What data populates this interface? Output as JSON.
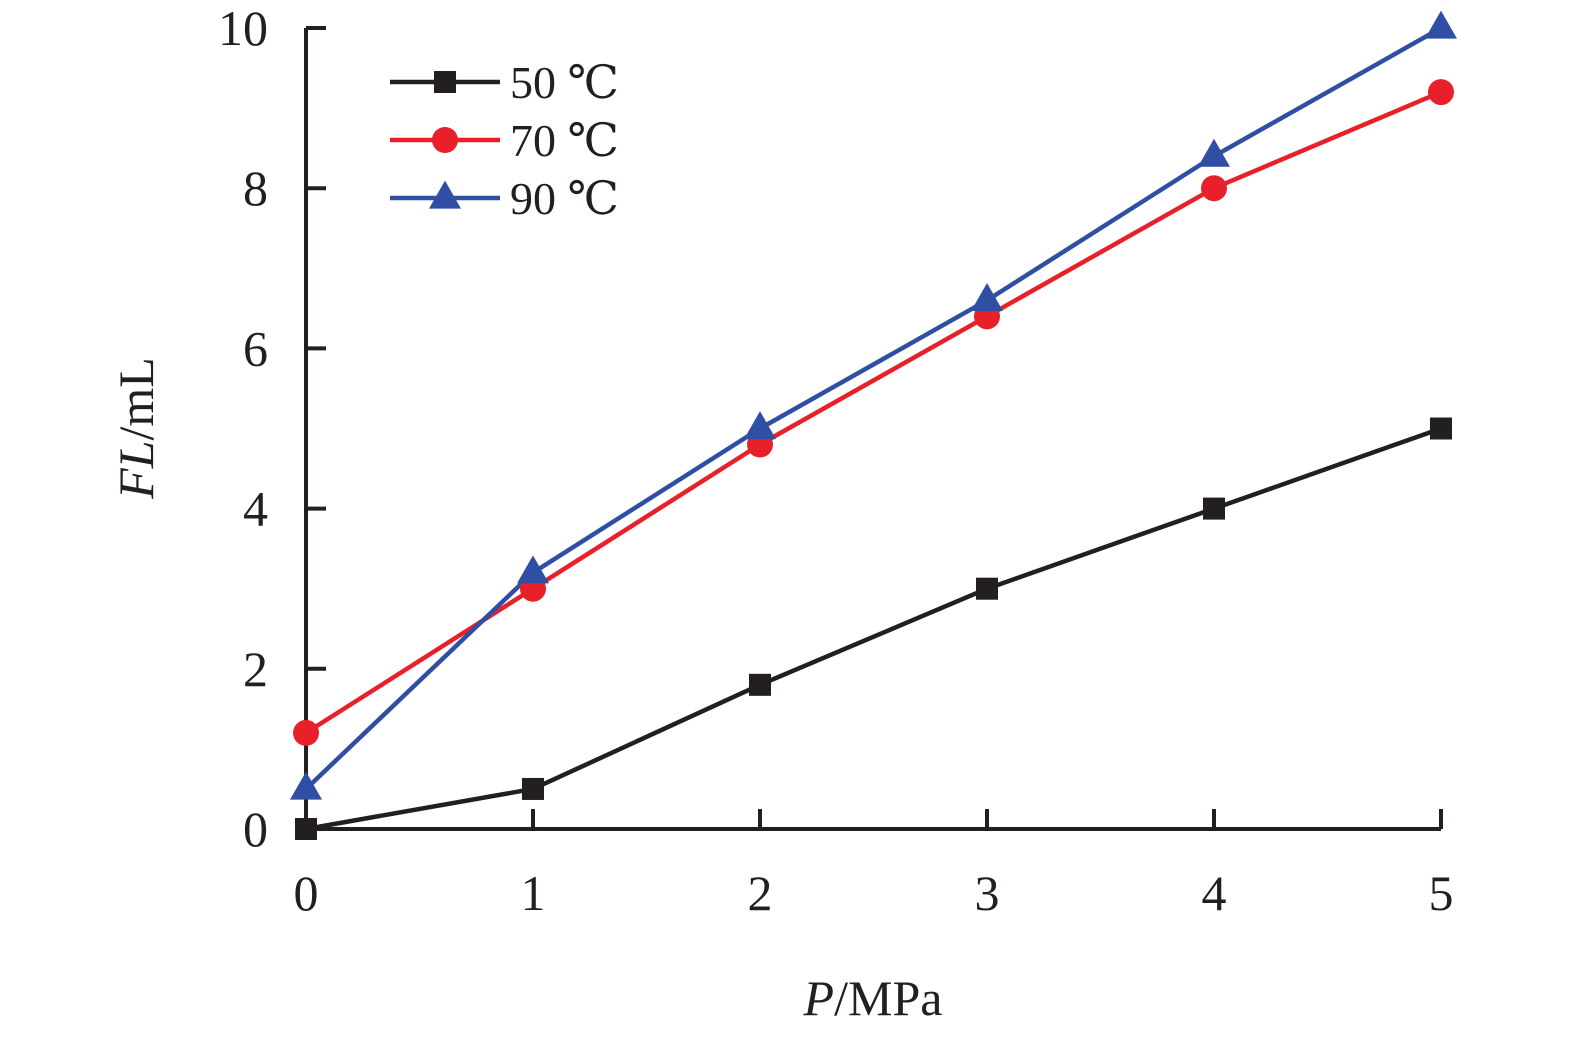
{
  "chart_data": {
    "type": "line",
    "x": [
      0,
      1,
      2,
      3,
      4,
      5
    ],
    "xlabel_var": "P",
    "xlabel_unit": "/MPa",
    "ylabel_var": "FL",
    "ylabel_unit": "/mL",
    "xlim": [
      0,
      5
    ],
    "ylim": [
      0,
      10
    ],
    "xticks": [
      0,
      1,
      2,
      3,
      4,
      5
    ],
    "yticks": [
      0,
      2,
      4,
      6,
      8,
      10
    ],
    "grid": false,
    "legend_position": "top-left",
    "series": [
      {
        "name": "50 ℃",
        "color": "#231f20",
        "marker": "square",
        "values": [
          0,
          0.5,
          1.8,
          3.0,
          4.0,
          5.0
        ]
      },
      {
        "name": "70 ℃",
        "color": "#e8202a",
        "marker": "circle",
        "values": [
          1.2,
          3.0,
          4.8,
          6.4,
          8.0,
          9.2
        ]
      },
      {
        "name": "90 ℃",
        "color": "#2e4fa3",
        "marker": "triangle",
        "values": [
          0.5,
          3.2,
          5.0,
          6.6,
          8.4,
          10.0
        ]
      }
    ]
  }
}
